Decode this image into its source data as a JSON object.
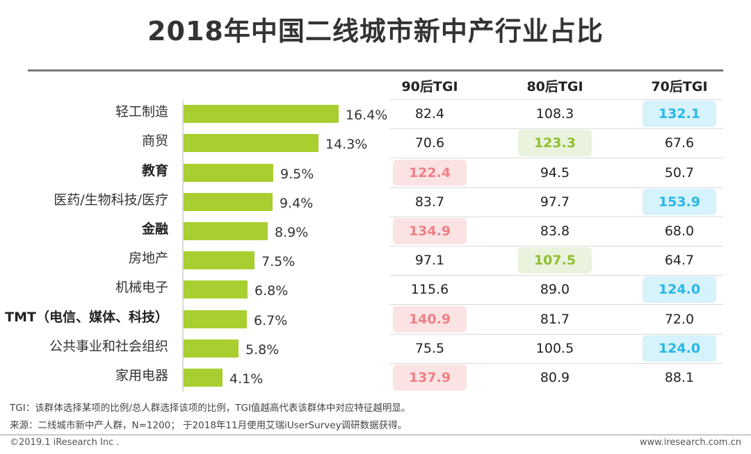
{
  "chart_data": {
    "type": "bar",
    "title": "2018年中国二线城市新中产行业占比",
    "categories": [
      "轻工制造",
      "商贸",
      "教育",
      "医药/生物科技/医疗",
      "金融",
      "房地产",
      "机械电子",
      "TMT（电信、媒体、科技）",
      "公共事业和社会组织",
      "家用电器"
    ],
    "bold_categories": [
      false,
      false,
      true,
      false,
      true,
      false,
      false,
      true,
      false,
      false
    ],
    "values": [
      16.4,
      14.3,
      9.5,
      9.4,
      8.9,
      7.5,
      6.8,
      6.7,
      5.8,
      4.1
    ],
    "value_labels": [
      "16.4%",
      "14.3%",
      "9.5%",
      "9.4%",
      "8.9%",
      "7.5%",
      "6.8%",
      "6.7%",
      "5.8%",
      "4.1%"
    ],
    "unit": "%",
    "xlim": [
      0,
      20
    ],
    "bar_color": "#a8cf2f",
    "tgi_columns": [
      {
        "name": "90后TGI",
        "color": "#ef7f86",
        "values": [
          "82.4",
          "70.6",
          "122.4",
          "83.7",
          "134.9",
          "97.1",
          "115.6",
          "140.9",
          "75.5",
          "137.9"
        ],
        "highlight": [
          false,
          false,
          true,
          false,
          true,
          false,
          false,
          true,
          false,
          true
        ]
      },
      {
        "name": "80后TGI",
        "color": "#8fbf2f",
        "values": [
          "108.3",
          "123.3",
          "94.5",
          "97.7",
          "83.8",
          "107.5",
          "89.0",
          "81.7",
          "100.5",
          "80.9"
        ],
        "highlight": [
          false,
          true,
          false,
          false,
          false,
          true,
          false,
          false,
          false,
          false
        ]
      },
      {
        "name": "70后TGI",
        "color": "#28b7e6",
        "values": [
          "132.1",
          "67.6",
          "50.7",
          "153.9",
          "68.0",
          "64.7",
          "124.0",
          "72.0",
          "124.0",
          "88.1"
        ],
        "highlight": [
          true,
          false,
          false,
          true,
          false,
          false,
          true,
          false,
          true,
          false
        ]
      }
    ]
  },
  "notes": {
    "tgi_note": "TGI：该群体选择某项的比例/总人群选择该项的比例，TGI值越高代表该群体中对应特征越明显。",
    "source": "来源：二线城市新中产人群，N=1200； 于2018年11月使用艾瑞iUserSurvey调研数据获得。"
  },
  "footer": {
    "copyright": "©2019.1 iResearch Inc .",
    "website": "www.iresearch.com.cn"
  }
}
